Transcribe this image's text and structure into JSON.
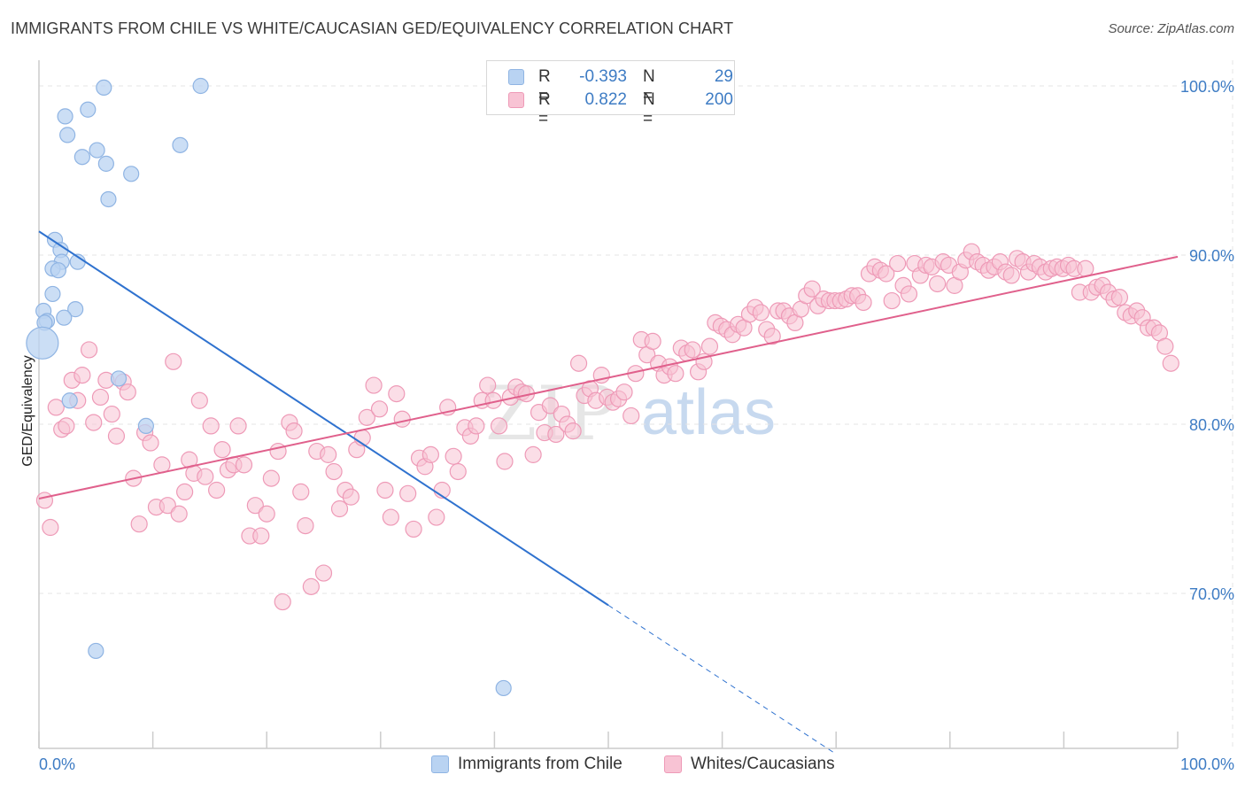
{
  "title": "IMMIGRANTS FROM CHILE VS WHITE/CAUCASIAN GED/EQUIVALENCY CORRELATION CHART",
  "source": "Source: ZipAtlas.com",
  "watermark": {
    "zip": "ZIP",
    "atlas": "atlas"
  },
  "colors": {
    "blue_fill": "#b9d3f2",
    "blue_stroke": "#8fb4e3",
    "blue_line": "#2f72cf",
    "pink_fill": "#f8c3d4",
    "pink_stroke": "#ee9ab7",
    "pink_line": "#e0608c",
    "tick_text": "#3e7cc4",
    "grid": "#e4e4e4"
  },
  "legend": {
    "rows": [
      {
        "r_label": "R =",
        "r_value": "-0.393",
        "n_label": "N =",
        "n_value": "29",
        "color": "blue"
      },
      {
        "r_label": "R =",
        "r_value": "0.822",
        "n_label": "N =",
        "n_value": "200",
        "color": "pink"
      }
    ]
  },
  "bottom_legend": [
    {
      "label": "Immigrants from Chile",
      "color": "blue"
    },
    {
      "label": "Whites/Caucasians",
      "color": "pink"
    }
  ],
  "chart_data": {
    "type": "scatter",
    "title": "IMMIGRANTS FROM CHILE VS WHITE/CAUCASIAN GED/EQUIVALENCY CORRELATION CHART",
    "xlabel": "",
    "ylabel": "GED/Equivalency",
    "xlim": [
      0,
      100
    ],
    "ylim": [
      60.5,
      101.5
    ],
    "x_tick_labels": [
      "0.0%",
      "100.0%"
    ],
    "y_ticks": [
      70,
      80,
      90,
      100
    ],
    "y_tick_labels": [
      "70.0%",
      "80.0%",
      "90.0%",
      "100.0%"
    ],
    "grid": true,
    "legend_position": "top-center",
    "series": [
      {
        "name": "Immigrants from Chile",
        "r": -0.393,
        "n": 29,
        "color": "blue",
        "trend": {
          "x0": 0,
          "y0": 91.4,
          "x1": 50,
          "y1": 69.3,
          "dashed_to_x": 70,
          "dashed_to_y": 60.5
        },
        "points": [
          [
            5.7,
            99.9
          ],
          [
            14.2,
            100.0
          ],
          [
            4.3,
            98.6
          ],
          [
            2.3,
            98.2
          ],
          [
            2.5,
            97.1
          ],
          [
            12.4,
            96.5
          ],
          [
            5.1,
            96.2
          ],
          [
            3.8,
            95.8
          ],
          [
            5.9,
            95.4
          ],
          [
            8.1,
            94.8
          ],
          [
            6.1,
            93.3
          ],
          [
            1.4,
            90.9
          ],
          [
            1.9,
            90.3
          ],
          [
            3.4,
            89.6
          ],
          [
            2.0,
            89.6
          ],
          [
            1.2,
            89.2
          ],
          [
            1.7,
            89.1
          ],
          [
            1.2,
            87.7
          ],
          [
            3.2,
            86.8
          ],
          [
            0.4,
            86.7
          ],
          [
            2.2,
            86.3
          ],
          [
            0.7,
            86.1
          ],
          [
            0.5,
            86.0
          ],
          [
            0.3,
            84.8
          ],
          [
            7.0,
            82.7
          ],
          [
            2.7,
            81.4
          ],
          [
            9.4,
            79.9
          ],
          [
            5.0,
            66.6
          ],
          [
            40.8,
            64.4
          ]
        ]
      },
      {
        "name": "Whites/Caucasians",
        "r": 0.822,
        "n": 200,
        "color": "pink",
        "trend": {
          "x0": 0,
          "y0": 75.6,
          "x1": 100,
          "y1": 89.9
        },
        "points": [
          [
            0.5,
            75.5
          ],
          [
            1.0,
            73.9
          ],
          [
            1.5,
            81.0
          ],
          [
            2.0,
            79.7
          ],
          [
            2.4,
            79.9
          ],
          [
            2.9,
            82.6
          ],
          [
            3.4,
            81.4
          ],
          [
            3.8,
            82.9
          ],
          [
            4.4,
            84.4
          ],
          [
            4.8,
            80.1
          ],
          [
            5.4,
            81.6
          ],
          [
            5.9,
            82.6
          ],
          [
            6.4,
            80.6
          ],
          [
            6.8,
            79.3
          ],
          [
            7.4,
            82.5
          ],
          [
            7.8,
            81.9
          ],
          [
            8.3,
            76.8
          ],
          [
            8.8,
            74.1
          ],
          [
            9.3,
            79.5
          ],
          [
            9.8,
            78.9
          ],
          [
            10.3,
            75.1
          ],
          [
            10.8,
            77.6
          ],
          [
            11.3,
            75.2
          ],
          [
            11.8,
            83.7
          ],
          [
            12.3,
            74.7
          ],
          [
            12.8,
            76.0
          ],
          [
            13.2,
            77.9
          ],
          [
            13.6,
            77.1
          ],
          [
            14.1,
            81.4
          ],
          [
            14.6,
            76.9
          ],
          [
            15.1,
            79.9
          ],
          [
            15.6,
            76.1
          ],
          [
            16.1,
            78.5
          ],
          [
            16.6,
            77.3
          ],
          [
            17.1,
            77.6
          ],
          [
            17.5,
            79.9
          ],
          [
            18.0,
            77.6
          ],
          [
            18.5,
            73.4
          ],
          [
            19.0,
            75.2
          ],
          [
            19.5,
            73.4
          ],
          [
            20.0,
            74.7
          ],
          [
            20.4,
            76.8
          ],
          [
            21.0,
            78.4
          ],
          [
            21.4,
            69.5
          ],
          [
            22.0,
            80.1
          ],
          [
            22.4,
            79.6
          ],
          [
            23.0,
            76.0
          ],
          [
            23.4,
            74.0
          ],
          [
            23.9,
            70.4
          ],
          [
            24.4,
            78.4
          ],
          [
            25.0,
            71.2
          ],
          [
            25.4,
            78.2
          ],
          [
            25.9,
            77.2
          ],
          [
            26.4,
            75.0
          ],
          [
            26.9,
            76.1
          ],
          [
            27.4,
            75.7
          ],
          [
            27.9,
            78.5
          ],
          [
            28.4,
            79.2
          ],
          [
            28.8,
            80.4
          ],
          [
            29.4,
            82.3
          ],
          [
            29.9,
            80.9
          ],
          [
            30.4,
            76.1
          ],
          [
            30.9,
            74.5
          ],
          [
            31.4,
            81.8
          ],
          [
            31.9,
            80.3
          ],
          [
            32.4,
            75.9
          ],
          [
            32.9,
            73.8
          ],
          [
            33.4,
            78.0
          ],
          [
            33.9,
            77.5
          ],
          [
            34.4,
            78.2
          ],
          [
            34.9,
            74.5
          ],
          [
            35.4,
            76.1
          ],
          [
            35.9,
            81.0
          ],
          [
            36.4,
            78.1
          ],
          [
            36.8,
            77.2
          ],
          [
            37.4,
            79.8
          ],
          [
            37.9,
            79.3
          ],
          [
            38.4,
            79.9
          ],
          [
            38.9,
            81.4
          ],
          [
            39.4,
            82.3
          ],
          [
            39.9,
            81.4
          ],
          [
            40.4,
            79.9
          ],
          [
            40.9,
            77.8
          ],
          [
            41.4,
            81.6
          ],
          [
            41.9,
            82.2
          ],
          [
            42.4,
            81.9
          ],
          [
            42.8,
            81.8
          ],
          [
            43.4,
            78.2
          ],
          [
            43.9,
            80.7
          ],
          [
            44.4,
            79.5
          ],
          [
            44.9,
            81.1
          ],
          [
            45.4,
            79.4
          ],
          [
            45.9,
            80.6
          ],
          [
            46.4,
            80.0
          ],
          [
            46.9,
            79.6
          ],
          [
            47.4,
            83.6
          ],
          [
            47.9,
            81.7
          ],
          [
            48.4,
            82.1
          ],
          [
            48.9,
            81.4
          ],
          [
            49.4,
            82.9
          ],
          [
            49.9,
            81.6
          ],
          [
            50.4,
            81.3
          ],
          [
            50.9,
            81.5
          ],
          [
            51.4,
            81.9
          ],
          [
            52.0,
            80.5
          ],
          [
            52.4,
            83.0
          ],
          [
            52.9,
            85.0
          ],
          [
            53.4,
            84.1
          ],
          [
            53.9,
            84.9
          ],
          [
            54.4,
            83.6
          ],
          [
            54.9,
            82.9
          ],
          [
            55.4,
            83.4
          ],
          [
            55.9,
            83.0
          ],
          [
            56.4,
            84.5
          ],
          [
            56.9,
            84.2
          ],
          [
            57.4,
            84.4
          ],
          [
            57.9,
            83.1
          ],
          [
            58.4,
            83.7
          ],
          [
            58.9,
            84.6
          ],
          [
            59.4,
            86.0
          ],
          [
            59.9,
            85.8
          ],
          [
            60.4,
            85.6
          ],
          [
            60.9,
            85.3
          ],
          [
            61.4,
            85.9
          ],
          [
            61.9,
            85.7
          ],
          [
            62.4,
            86.5
          ],
          [
            62.9,
            86.9
          ],
          [
            63.4,
            86.6
          ],
          [
            63.9,
            85.6
          ],
          [
            64.4,
            85.2
          ],
          [
            64.9,
            86.7
          ],
          [
            65.4,
            86.7
          ],
          [
            65.9,
            86.4
          ],
          [
            66.4,
            86.0
          ],
          [
            66.9,
            86.8
          ],
          [
            67.4,
            87.6
          ],
          [
            67.9,
            88.0
          ],
          [
            68.4,
            87.0
          ],
          [
            68.9,
            87.4
          ],
          [
            69.4,
            87.3
          ],
          [
            69.9,
            87.3
          ],
          [
            70.4,
            87.3
          ],
          [
            70.9,
            87.4
          ],
          [
            71.4,
            87.6
          ],
          [
            71.9,
            87.6
          ],
          [
            72.4,
            87.2
          ],
          [
            72.9,
            88.9
          ],
          [
            73.4,
            89.3
          ],
          [
            73.9,
            89.1
          ],
          [
            74.4,
            88.9
          ],
          [
            74.9,
            87.3
          ],
          [
            75.4,
            89.5
          ],
          [
            75.9,
            88.2
          ],
          [
            76.4,
            87.7
          ],
          [
            76.9,
            89.5
          ],
          [
            77.4,
            88.8
          ],
          [
            77.9,
            89.4
          ],
          [
            78.4,
            89.3
          ],
          [
            78.9,
            88.3
          ],
          [
            79.4,
            89.6
          ],
          [
            79.9,
            89.4
          ],
          [
            80.4,
            88.2
          ],
          [
            80.9,
            89.0
          ],
          [
            81.4,
            89.7
          ],
          [
            81.9,
            90.2
          ],
          [
            82.4,
            89.6
          ],
          [
            82.9,
            89.4
          ],
          [
            83.4,
            89.1
          ],
          [
            83.9,
            89.3
          ],
          [
            84.4,
            89.6
          ],
          [
            84.9,
            89.0
          ],
          [
            85.4,
            88.8
          ],
          [
            85.9,
            89.8
          ],
          [
            86.4,
            89.6
          ],
          [
            86.9,
            89.0
          ],
          [
            87.4,
            89.5
          ],
          [
            87.9,
            89.3
          ],
          [
            88.4,
            89.0
          ],
          [
            88.9,
            89.2
          ],
          [
            89.4,
            89.3
          ],
          [
            89.9,
            89.2
          ],
          [
            90.4,
            89.4
          ],
          [
            90.9,
            89.2
          ],
          [
            91.4,
            87.8
          ],
          [
            91.9,
            89.2
          ],
          [
            92.4,
            87.8
          ],
          [
            92.9,
            88.1
          ],
          [
            93.4,
            88.2
          ],
          [
            93.9,
            87.8
          ],
          [
            94.4,
            87.4
          ],
          [
            94.9,
            87.5
          ],
          [
            95.4,
            86.6
          ],
          [
            95.9,
            86.4
          ],
          [
            96.4,
            86.7
          ],
          [
            96.9,
            86.3
          ],
          [
            97.4,
            85.7
          ],
          [
            97.9,
            85.7
          ],
          [
            98.4,
            85.4
          ],
          [
            98.9,
            84.6
          ],
          [
            99.4,
            83.6
          ]
        ]
      }
    ]
  }
}
